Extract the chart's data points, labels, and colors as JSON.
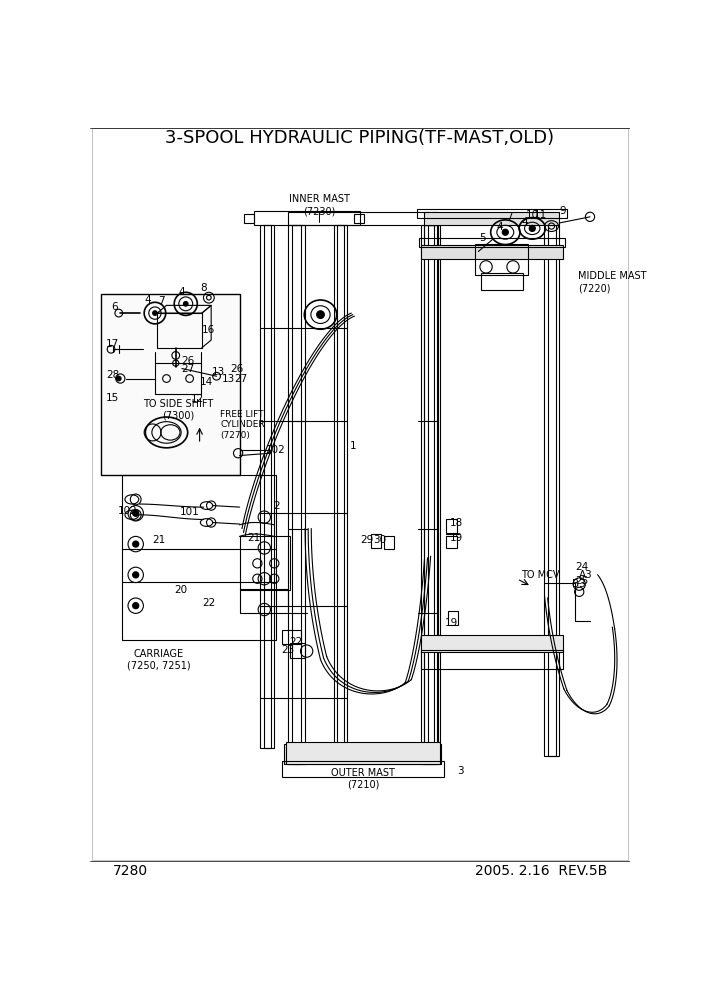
{
  "title": "3-SPOOL HYDRAULIC PIPING(TF-MAST,OLD)",
  "page_number": "7280",
  "date_rev": "2005. 2.16  REV.5B",
  "bg_color": "#ffffff",
  "lc": "#000000",
  "gray": "#888888",
  "light_gray": "#cccccc",
  "title_fontsize": 13,
  "footer_fontsize": 10,
  "label_fontsize": 7.5
}
